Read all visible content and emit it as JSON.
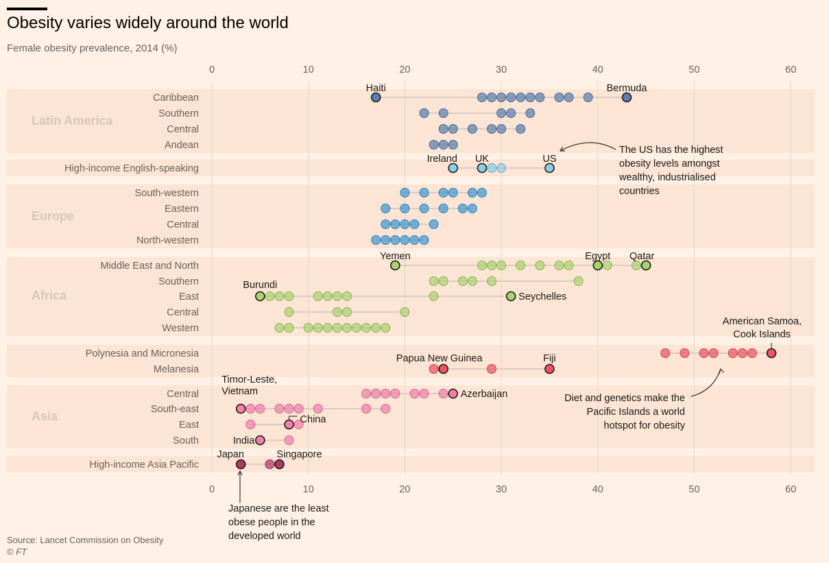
{
  "title": "Obesity varies widely around the world",
  "subtitle": "Female obesity prevalence, 2014 (%)",
  "source": "Source: Lancet Commission on Obesity",
  "copyright": "© FT",
  "colors": {
    "background": "#fff1e5",
    "band": "#fce5d4",
    "grid": "#e2d5ca",
    "connector": "#cfc4bb",
    "latin_america": "#5a7fb0",
    "english_speaking": "#8ccfe8",
    "europe": "#3f9ad6",
    "africa": "#a9d46f",
    "polynesia": "#ee5563",
    "asia": "#f27fae",
    "asia_pacific": "#b03a66"
  },
  "chart_data": {
    "type": "dot-strip",
    "title": "Obesity varies widely around the world",
    "subtitle": "Female obesity prevalence, 2014 (%)",
    "xlim": [
      0,
      62
    ],
    "xticks": [
      0,
      10,
      20,
      30,
      40,
      50,
      60
    ],
    "grid": true,
    "groups": [
      {
        "name": "Latin America",
        "color": "#5a7fb0",
        "rows": [
          {
            "label": "Caribbean",
            "values": [
              17,
              28,
              29,
              30,
              31,
              32,
              33,
              34,
              36,
              37,
              39,
              43
            ],
            "highlight": [
              17,
              43
            ]
          },
          {
            "label": "Southern",
            "values": [
              22,
              24,
              30,
              31,
              33
            ],
            "highlight": []
          },
          {
            "label": "Central",
            "values": [
              24,
              25,
              27,
              29,
              30,
              32
            ],
            "highlight": []
          },
          {
            "label": "Andean",
            "values": [
              23,
              24,
              25
            ],
            "highlight": []
          }
        ]
      },
      {
        "name": "",
        "color": "#8ccfe8",
        "rows": [
          {
            "label": "High-income English-speaking",
            "values": [
              25,
              28,
              29,
              30,
              35
            ],
            "highlight": [
              25,
              28,
              35
            ]
          }
        ]
      },
      {
        "name": "Europe",
        "color": "#3f9ad6",
        "rows": [
          {
            "label": "South-western",
            "values": [
              20,
              22,
              24,
              25,
              27,
              28
            ],
            "highlight": []
          },
          {
            "label": "Eastern",
            "values": [
              18,
              20,
              22,
              24,
              26,
              27
            ],
            "highlight": []
          },
          {
            "label": "Central",
            "values": [
              18,
              19,
              20,
              21,
              23
            ],
            "highlight": []
          },
          {
            "label": "North-western",
            "values": [
              17,
              18,
              19,
              20,
              21,
              22
            ],
            "highlight": []
          }
        ]
      },
      {
        "name": "Africa",
        "color": "#a9d46f",
        "rows": [
          {
            "label": "Middle East and North",
            "values": [
              19,
              28,
              29,
              30,
              32,
              34,
              36,
              37,
              40,
              41,
              44,
              45
            ],
            "highlight": [
              19,
              40,
              45
            ]
          },
          {
            "label": "Southern",
            "values": [
              23,
              24,
              26,
              27,
              29,
              38
            ],
            "highlight": []
          },
          {
            "label": "East",
            "values": [
              5,
              6,
              7,
              8,
              11,
              12,
              13,
              14,
              23,
              31
            ],
            "highlight": [
              5,
              31
            ]
          },
          {
            "label": "Central",
            "values": [
              8,
              13,
              14,
              20
            ],
            "highlight": []
          },
          {
            "label": "Western",
            "values": [
              7,
              8,
              10,
              11,
              12,
              13,
              14,
              15,
              16,
              17,
              18
            ],
            "highlight": []
          }
        ]
      },
      {
        "name": "",
        "color": "#ee5563",
        "rows": [
          {
            "label": "Polynesia and Micronesia",
            "values": [
              47,
              49,
              51,
              52,
              54,
              55,
              56,
              58
            ],
            "highlight": [
              58
            ]
          },
          {
            "label": "Melanesia",
            "values": [
              23,
              24,
              29,
              35
            ],
            "highlight": [
              24,
              35
            ]
          }
        ]
      },
      {
        "name": "Asia",
        "color": "#f27fae",
        "rows": [
          {
            "label": "Central",
            "values": [
              16,
              17,
              18,
              19,
              21,
              22,
              24,
              25
            ],
            "highlight": [
              25
            ]
          },
          {
            "label": "South-east",
            "values": [
              3,
              4,
              5,
              7,
              8,
              9,
              11,
              16,
              18
            ],
            "highlight": [
              3
            ]
          },
          {
            "label": "East",
            "values": [
              4,
              8,
              9
            ],
            "highlight": [
              8
            ]
          },
          {
            "label": "South",
            "values": [
              5,
              8
            ],
            "highlight": [
              5
            ]
          }
        ]
      },
      {
        "name": "",
        "color": "#b03a66",
        "rows": [
          {
            "label": "High-income Asia Pacific",
            "values": [
              3,
              6,
              7
            ],
            "highlight": [
              3,
              7
            ]
          }
        ]
      }
    ],
    "point_labels": [
      {
        "text": "Haiti",
        "x": 17,
        "row": "Caribbean"
      },
      {
        "text": "Bermuda",
        "x": 43,
        "row": "Caribbean"
      },
      {
        "text": "Ireland",
        "x": 25,
        "row": "High-income English-speaking"
      },
      {
        "text": "UK",
        "x": 28,
        "row": "High-income English-speaking"
      },
      {
        "text": "US",
        "x": 35,
        "row": "High-income English-speaking"
      },
      {
        "text": "Yemen",
        "x": 19,
        "row": "Middle East and North"
      },
      {
        "text": "Egypt",
        "x": 40,
        "row": "Middle East and North"
      },
      {
        "text": "Qatar",
        "x": 45,
        "row": "Middle East and North"
      },
      {
        "text": "Burundi",
        "x": 5,
        "row": "East"
      },
      {
        "text": "Seychelles",
        "x": 31,
        "row": "East"
      },
      {
        "text": "American Samoa,",
        "x": 58,
        "row": "Polynesia and Micronesia"
      },
      {
        "text": "Cook Islands",
        "x": 58,
        "row": "Polynesia and Micronesia"
      },
      {
        "text": "Papua New Guinea",
        "x": 24,
        "row": "Melanesia"
      },
      {
        "text": "Fiji",
        "x": 35,
        "row": "Melanesia"
      },
      {
        "text": "Azerbaijan",
        "x": 25,
        "row": "Central"
      },
      {
        "text": "Timor-Leste,",
        "x": 3,
        "row": "South-east"
      },
      {
        "text": "Vietnam",
        "x": 3,
        "row": "South-east"
      },
      {
        "text": "China",
        "x": 8,
        "row": "East"
      },
      {
        "text": "India",
        "x": 5,
        "row": "South"
      },
      {
        "text": "Japan",
        "x": 3,
        "row": "High-income Asia Pacific"
      },
      {
        "text": "Singapore",
        "x": 7,
        "row": "High-income Asia Pacific"
      }
    ],
    "annotations": [
      {
        "lines": [
          "The US has the highest",
          "obesity levels amongst",
          "wealthy, industrialised",
          "countries"
        ]
      },
      {
        "lines": [
          "Diet and genetics make the",
          "Pacific Islands a world",
          "hotspot for obesity"
        ]
      },
      {
        "lines": [
          "Japanese are the least",
          "obese people in the",
          "developed world"
        ]
      }
    ]
  }
}
